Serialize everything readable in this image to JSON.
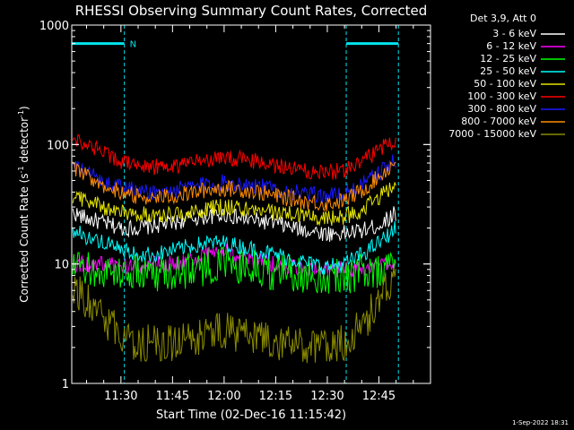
{
  "chart_data": {
    "type": "line",
    "title": "RHESSI Observing Summary Count Rates, Corrected",
    "xlabel": "Start Time (02-Dec-16 11:15:42)",
    "ylabel_parts": {
      "main": "Corrected Count Rate (s",
      "sup1": "-1",
      "mid": " detector",
      "sup2": "-1",
      "end": ")"
    },
    "yscale": "log",
    "ylim": [
      1,
      1000
    ],
    "xlim": [
      "11:15:42",
      "13:00:00"
    ],
    "y_ticks": [
      "1",
      "10",
      "100",
      "1000"
    ],
    "x_ticks": [
      "11:30",
      "11:45",
      "12:00",
      "12:15",
      "12:30",
      "12:45"
    ],
    "grid": false,
    "legend_header": "Det 3,9, Att 0",
    "legend_position": "top-right outside",
    "timestamp": "1-Sep-2022 18:31",
    "night_intervals": [
      {
        "label": "N",
        "start": "11:15:42",
        "end": "11:31:00",
        "color": "#00e5ee",
        "bar_level": 700
      },
      {
        "label": "",
        "start": "12:35:30",
        "end": "12:50:40",
        "color": "#00e5ee",
        "bar_level": 700
      }
    ],
    "x_sample": [
      "11:16",
      "11:20",
      "11:25",
      "11:30",
      "11:35",
      "11:40",
      "11:45",
      "11:50",
      "11:55",
      "12:00",
      "12:05",
      "12:10",
      "12:15",
      "12:20",
      "12:25",
      "12:30",
      "12:35",
      "12:40",
      "12:45",
      "12:50"
    ],
    "series": [
      {
        "name": "3 - 6 keV",
        "color": "#ffffff",
        "values": [
          27,
          24,
          22,
          20,
          20,
          21,
          22,
          24,
          25,
          26,
          24,
          23,
          22,
          20,
          19,
          18,
          18,
          19,
          21,
          27
        ]
      },
      {
        "name": "6 - 12 keV",
        "color": "#ff00ff",
        "values": [
          10,
          10,
          10,
          9.5,
          9.5,
          10,
          10,
          10.5,
          12,
          13,
          11,
          10.5,
          10,
          9.5,
          9,
          9,
          9,
          9,
          9.5,
          10
        ]
      },
      {
        "name": "12 - 25 keV",
        "color": "#00ff00",
        "values": [
          9,
          9,
          8.5,
          8.5,
          8.5,
          8.5,
          8.5,
          9,
          9.5,
          10,
          9.5,
          9,
          8.5,
          8.5,
          8,
          8,
          8,
          8.5,
          9,
          10
        ]
      },
      {
        "name": "25 - 50 keV",
        "color": "#00ffff",
        "values": [
          19,
          17,
          15,
          13,
          12,
          12,
          13,
          14,
          15,
          15,
          14,
          13,
          12,
          11,
          10,
          9.5,
          10,
          12,
          15,
          20
        ]
      },
      {
        "name": "50 - 100 keV",
        "color": "#e6e600",
        "values": [
          38,
          34,
          30,
          27,
          26,
          26,
          26,
          27,
          29,
          30,
          29,
          28,
          27,
          26,
          25,
          24,
          25,
          28,
          36,
          46
        ]
      },
      {
        "name": "100 - 300 keV",
        "color": "#ff0000",
        "values": [
          115,
          100,
          85,
          73,
          67,
          65,
          66,
          70,
          74,
          77,
          75,
          72,
          67,
          63,
          60,
          58,
          62,
          72,
          90,
          110
        ]
      },
      {
        "name": "300 - 800 keV",
        "color": "#1a1aff",
        "values": [
          65,
          58,
          50,
          44,
          41,
          40,
          41,
          44,
          47,
          48,
          47,
          45,
          42,
          40,
          38,
          37,
          39,
          46,
          58,
          74
        ]
      },
      {
        "name": "800 - 7000 keV",
        "color": "#ff8c00",
        "values": [
          62,
          54,
          46,
          40,
          37,
          36,
          37,
          39,
          42,
          43,
          42,
          40,
          37,
          35,
          33,
          32,
          34,
          41,
          54,
          72
        ]
      },
      {
        "name": "7000 - 15000 keV",
        "color": "#8b8b00",
        "values": [
          6.5,
          5,
          3.5,
          2.5,
          2.2,
          2.2,
          2.2,
          2.4,
          2.6,
          2.8,
          2.6,
          2.4,
          2.3,
          2.1,
          2,
          2,
          2.2,
          3,
          5,
          8
        ]
      }
    ]
  }
}
